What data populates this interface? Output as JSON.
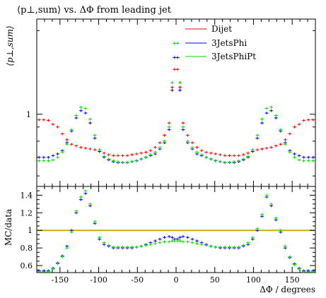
{
  "chart_data": [
    {
      "type": "scatter",
      "title": "⟨p⊥,sum⟩ vs. ΔΦ from leading jet",
      "ylabel": "⟨p⊥,sum⟩",
      "xlabel": "",
      "xlim": [
        -180,
        180
      ],
      "yscale": "log",
      "ylim": [
        0.55,
        2.2
      ],
      "y_ticks": [
        {
          "value": 1,
          "label": "1"
        }
      ],
      "legend_position": "top-right",
      "series": [
        {
          "name": "Dijet",
          "color": "#ff0000",
          "x": [
            -177,
            -171,
            -165,
            -159,
            -153,
            -147,
            -141,
            -135,
            -129,
            -123,
            -117,
            -111,
            -105,
            -99,
            -93,
            -87,
            -81,
            -75,
            -69,
            -63,
            -57,
            -51,
            -45,
            -39,
            -33,
            -27,
            -21,
            -15,
            -9,
            -5,
            -2,
            2,
            5,
            9,
            15,
            21,
            27,
            33,
            39,
            45,
            51,
            57,
            63,
            69,
            75,
            81,
            87,
            93,
            99,
            105,
            111,
            117,
            123,
            129,
            135,
            141,
            147,
            153,
            159,
            165,
            171,
            177
          ],
          "y": [
            0.955,
            0.955,
            0.95,
            0.92,
            0.9,
            0.85,
            0.81,
            0.78,
            0.77,
            0.76,
            0.755,
            0.75,
            0.745,
            0.735,
            0.725,
            0.715,
            0.71,
            0.71,
            0.71,
            0.71,
            0.715,
            0.72,
            0.725,
            0.73,
            0.74,
            0.76,
            0.79,
            0.84,
            0.93,
            1.25,
            1.45,
            1.45,
            1.25,
            0.93,
            0.84,
            0.79,
            0.76,
            0.74,
            0.73,
            0.725,
            0.72,
            0.715,
            0.71,
            0.71,
            0.71,
            0.71,
            0.715,
            0.725,
            0.735,
            0.745,
            0.75,
            0.755,
            0.76,
            0.77,
            0.78,
            0.81,
            0.85,
            0.9,
            0.92,
            0.95,
            0.955,
            0.955
          ]
        },
        {
          "name": "3JetsPhi",
          "color": "#0000ff",
          "x": [
            -177,
            -171,
            -165,
            -159,
            -153,
            -147,
            -141,
            -135,
            -129,
            -123,
            -117,
            -111,
            -105,
            -99,
            -93,
            -87,
            -81,
            -75,
            -69,
            -63,
            -57,
            -51,
            -45,
            -39,
            -33,
            -27,
            -21,
            -15,
            -9,
            -5,
            -2,
            2,
            5,
            9,
            15,
            21,
            27,
            33,
            39,
            45,
            51,
            57,
            63,
            69,
            75,
            81,
            87,
            93,
            99,
            105,
            111,
            117,
            123,
            129,
            135,
            141,
            147,
            153,
            159,
            165,
            171,
            177
          ],
          "y": [
            0.7,
            0.7,
            0.7,
            0.71,
            0.72,
            0.74,
            0.79,
            0.87,
            0.97,
            1.03,
            1.01,
            0.93,
            0.82,
            0.735,
            0.7,
            0.685,
            0.675,
            0.67,
            0.67,
            0.67,
            0.675,
            0.68,
            0.69,
            0.7,
            0.71,
            0.72,
            0.75,
            0.79,
            0.88,
            1.22,
            1.6,
            1.6,
            1.22,
            0.88,
            0.79,
            0.75,
            0.72,
            0.71,
            0.7,
            0.69,
            0.68,
            0.675,
            0.67,
            0.67,
            0.67,
            0.675,
            0.685,
            0.7,
            0.735,
            0.82,
            0.93,
            1.01,
            1.03,
            0.97,
            0.87,
            0.79,
            0.74,
            0.72,
            0.71,
            0.7,
            0.7,
            0.7
          ]
        },
        {
          "name": "3JetsPhiPt",
          "color": "#00dd00",
          "x": [
            -177,
            -171,
            -165,
            -159,
            -153,
            -147,
            -141,
            -135,
            -129,
            -123,
            -117,
            -111,
            -105,
            -99,
            -93,
            -87,
            -81,
            -75,
            -69,
            -63,
            -57,
            -51,
            -45,
            -39,
            -33,
            -27,
            -21,
            -15,
            -9,
            -5,
            -2,
            2,
            5,
            9,
            15,
            21,
            27,
            33,
            39,
            45,
            51,
            57,
            63,
            69,
            75,
            81,
            87,
            93,
            99,
            105,
            111,
            117,
            123,
            129,
            135,
            141,
            147,
            153,
            159,
            165,
            171,
            177
          ],
          "y": [
            0.68,
            0.68,
            0.68,
            0.685,
            0.7,
            0.73,
            0.78,
            0.88,
            0.99,
            1.06,
            1.05,
            0.96,
            0.84,
            0.745,
            0.705,
            0.69,
            0.68,
            0.675,
            0.672,
            0.672,
            0.676,
            0.682,
            0.69,
            0.7,
            0.715,
            0.73,
            0.76,
            0.8,
            0.9,
            1.3,
            1.8,
            1.8,
            1.3,
            0.9,
            0.8,
            0.76,
            0.73,
            0.715,
            0.7,
            0.69,
            0.682,
            0.676,
            0.672,
            0.672,
            0.675,
            0.68,
            0.69,
            0.705,
            0.745,
            0.84,
            0.96,
            1.05,
            1.06,
            0.99,
            0.88,
            0.78,
            0.73,
            0.7,
            0.685,
            0.68,
            0.68,
            0.68
          ]
        }
      ]
    },
    {
      "type": "scatter",
      "title": "",
      "ylabel": "MC/data",
      "xlabel": "ΔΦ / degrees",
      "xlim": [
        -180,
        180
      ],
      "ylim": [
        0.52,
        1.5
      ],
      "y_ticks": [
        {
          "value": 0.6,
          "label": "0.6"
        },
        {
          "value": 0.8,
          "label": "0.8"
        },
        {
          "value": 1.0,
          "label": "1"
        },
        {
          "value": 1.2,
          "label": "1.2"
        },
        {
          "value": 1.4,
          "label": "1.4"
        }
      ],
      "x_ticks": [
        {
          "value": -150,
          "label": "-150"
        },
        {
          "value": -100,
          "label": "-100"
        },
        {
          "value": -50,
          "label": "-50"
        },
        {
          "value": 0,
          "label": "0"
        },
        {
          "value": 50,
          "label": "50"
        },
        {
          "value": 100,
          "label": "100"
        },
        {
          "value": 150,
          "label": "150"
        }
      ],
      "reference_line": {
        "y": 1.0,
        "color": "#c8b400"
      },
      "series": [
        {
          "name": "3JetsPhi",
          "color": "#0000ff",
          "x": [
            -177,
            -171,
            -165,
            -159,
            -153,
            -147,
            -141,
            -135,
            -129,
            -123,
            -117,
            -111,
            -105,
            -99,
            -93,
            -87,
            -81,
            -75,
            -69,
            -63,
            -57,
            -51,
            -45,
            -39,
            -33,
            -27,
            -21,
            -15,
            -9,
            -5,
            -2,
            2,
            5,
            9,
            15,
            21,
            27,
            33,
            39,
            45,
            51,
            57,
            63,
            69,
            75,
            81,
            87,
            93,
            99,
            105,
            111,
            117,
            123,
            129,
            135,
            141,
            147,
            153,
            159,
            165,
            171,
            177
          ],
          "y": [
            0.54,
            0.54,
            0.54,
            0.57,
            0.63,
            0.71,
            0.82,
            1.0,
            1.2,
            1.35,
            1.42,
            1.28,
            1.08,
            0.9,
            0.84,
            0.82,
            0.8,
            0.8,
            0.8,
            0.8,
            0.8,
            0.81,
            0.82,
            0.84,
            0.86,
            0.88,
            0.9,
            0.92,
            0.93,
            0.92,
            0.9,
            0.9,
            0.92,
            0.93,
            0.92,
            0.9,
            0.88,
            0.86,
            0.84,
            0.82,
            0.81,
            0.8,
            0.8,
            0.8,
            0.8,
            0.8,
            0.82,
            0.84,
            0.9,
            1.0,
            1.16,
            1.38,
            1.28,
            1.12,
            0.98,
            0.8,
            0.69,
            0.62,
            0.57,
            0.54,
            0.54,
            0.54
          ]
        },
        {
          "name": "3JetsPhiPt",
          "color": "#00dd00",
          "x": [
            -177,
            -171,
            -165,
            -159,
            -153,
            -147,
            -141,
            -135,
            -129,
            -123,
            -117,
            -111,
            -105,
            -99,
            -93,
            -87,
            -81,
            -75,
            -69,
            -63,
            -57,
            -51,
            -45,
            -39,
            -33,
            -27,
            -21,
            -15,
            -9,
            -5,
            -2,
            2,
            5,
            9,
            15,
            21,
            27,
            33,
            39,
            45,
            51,
            57,
            63,
            69,
            75,
            81,
            87,
            93,
            99,
            105,
            111,
            117,
            123,
            129,
            135,
            141,
            147,
            153,
            159,
            165,
            171,
            177
          ],
          "y": [
            0.53,
            0.53,
            0.53,
            0.56,
            0.62,
            0.7,
            0.8,
            0.98,
            1.22,
            1.38,
            1.45,
            1.3,
            1.1,
            0.92,
            0.86,
            0.83,
            0.81,
            0.81,
            0.81,
            0.81,
            0.81,
            0.81,
            0.82,
            0.83,
            0.84,
            0.85,
            0.86,
            0.87,
            0.87,
            0.88,
            0.88,
            0.88,
            0.88,
            0.87,
            0.87,
            0.86,
            0.85,
            0.84,
            0.83,
            0.82,
            0.81,
            0.81,
            0.81,
            0.81,
            0.81,
            0.81,
            0.83,
            0.86,
            0.92,
            1.02,
            1.18,
            1.4,
            1.3,
            1.14,
            1.0,
            0.82,
            0.7,
            0.61,
            0.56,
            0.53,
            0.53,
            0.53
          ]
        }
      ]
    }
  ]
}
